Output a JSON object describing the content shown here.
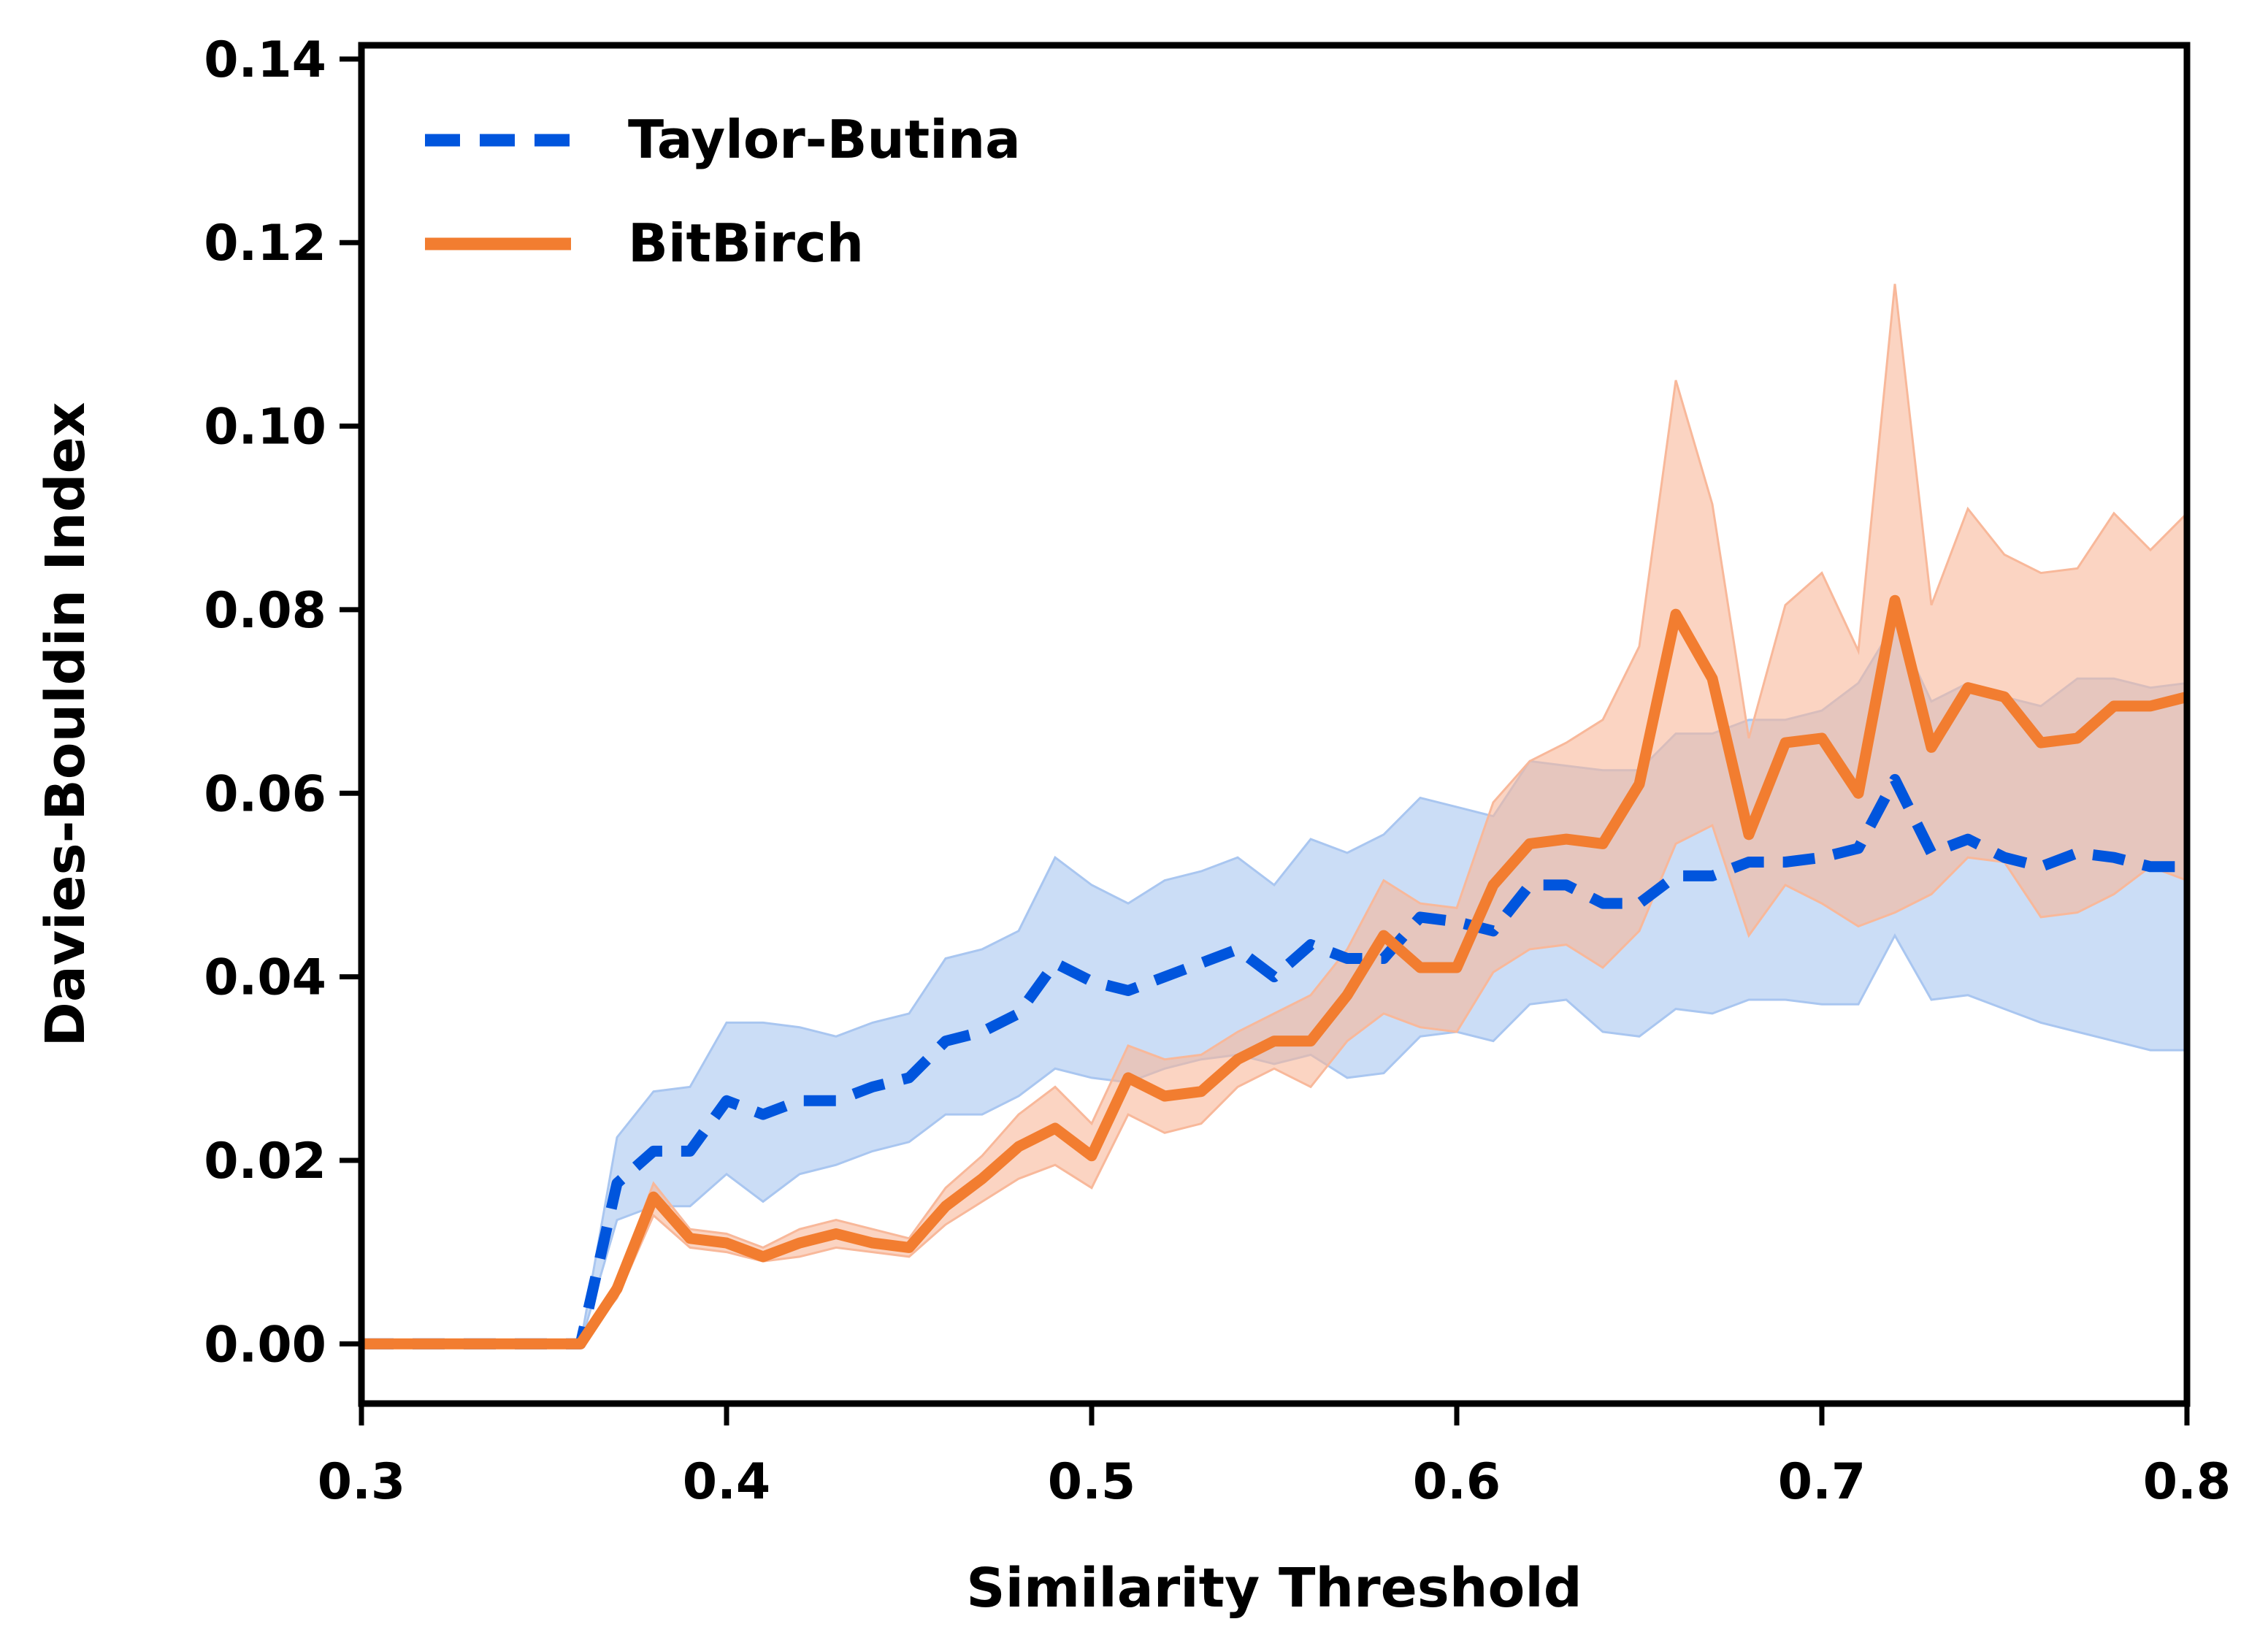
{
  "chart_data": {
    "type": "line",
    "title": "",
    "xlabel": "Similarity Threshold",
    "ylabel": "Davies-Bouldin Index",
    "xlim": [
      0.3,
      0.8
    ],
    "ylim": [
      -0.0065,
      0.1415
    ],
    "x_ticks": [
      0.3,
      0.4,
      0.5,
      0.6,
      0.7,
      0.8
    ],
    "x_tick_labels": [
      "0.3",
      "0.4",
      "0.5",
      "0.6",
      "0.7",
      "0.8"
    ],
    "y_ticks": [
      0.0,
      0.02,
      0.04,
      0.06,
      0.08,
      0.1,
      0.12,
      0.14
    ],
    "y_tick_labels": [
      "0.00",
      "0.02",
      "0.04",
      "0.06",
      "0.08",
      "0.10",
      "0.12",
      "0.14"
    ],
    "grid": false,
    "legend_position": "top-left",
    "x": [
      0.3,
      0.31,
      0.32,
      0.33,
      0.34,
      0.35,
      0.36,
      0.37,
      0.38,
      0.39,
      0.4,
      0.41,
      0.42,
      0.43,
      0.44,
      0.45,
      0.46,
      0.47,
      0.48,
      0.49,
      0.5,
      0.51,
      0.52,
      0.53,
      0.54,
      0.55,
      0.56,
      0.57,
      0.58,
      0.59,
      0.6,
      0.61,
      0.62,
      0.63,
      0.64,
      0.65,
      0.66,
      0.67,
      0.68,
      0.69,
      0.7,
      0.71,
      0.72,
      0.73,
      0.74,
      0.75,
      0.76,
      0.77,
      0.78,
      0.79,
      0.8
    ],
    "series": [
      {
        "name": "Taylor-Butina",
        "color": "#0055dd",
        "band_color": "#a9c6f0",
        "style": "dashed",
        "values": [
          0,
          0,
          0,
          0,
          0,
          0,
          0,
          0.0175,
          0.021,
          0.021,
          0.0265,
          0.025,
          0.0265,
          0.0265,
          0.028,
          0.029,
          0.033,
          0.034,
          0.036,
          0.0415,
          0.0395,
          0.0385,
          0.04,
          0.0415,
          0.043,
          0.04,
          0.0435,
          0.042,
          0.042,
          0.0465,
          0.046,
          0.045,
          0.05,
          0.05,
          0.048,
          0.048,
          0.051,
          0.051,
          0.0525,
          0.0525,
          0.053,
          0.054,
          0.0615,
          0.0535,
          0.055,
          0.053,
          0.052,
          0.0535,
          0.053,
          0.052,
          0.052
        ],
        "lower": [
          0,
          0,
          0,
          0,
          0,
          0,
          0,
          0.0135,
          0.015,
          0.015,
          0.0185,
          0.0155,
          0.0185,
          0.0195,
          0.021,
          0.022,
          0.025,
          0.025,
          0.027,
          0.03,
          0.029,
          0.0285,
          0.03,
          0.031,
          0.0315,
          0.0305,
          0.0315,
          0.029,
          0.0295,
          0.0335,
          0.034,
          0.033,
          0.037,
          0.0375,
          0.034,
          0.0335,
          0.0365,
          0.036,
          0.0375,
          0.0375,
          0.037,
          0.037,
          0.0445,
          0.0375,
          0.038,
          0.0365,
          0.035,
          0.034,
          0.033,
          0.032,
          0.032
        ],
        "upper": [
          0,
          0,
          0,
          0,
          0,
          0,
          0,
          0.0225,
          0.0275,
          0.028,
          0.035,
          0.035,
          0.0345,
          0.0335,
          0.035,
          0.036,
          0.042,
          0.043,
          0.045,
          0.053,
          0.05,
          0.048,
          0.0505,
          0.0515,
          0.053,
          0.05,
          0.055,
          0.0535,
          0.0555,
          0.0595,
          0.0585,
          0.0575,
          0.0635,
          0.063,
          0.0625,
          0.0625,
          0.0665,
          0.0665,
          0.068,
          0.068,
          0.069,
          0.072,
          0.0785,
          0.07,
          0.072,
          0.0705,
          0.0695,
          0.0725,
          0.0725,
          0.0715,
          0.072
        ]
      },
      {
        "name": "BitBirch",
        "color": "#f27d30",
        "band_color": "#f8b89a",
        "style": "solid",
        "values": [
          0,
          0,
          0,
          0,
          0,
          0,
          0,
          0.006,
          0.016,
          0.0115,
          0.011,
          0.0095,
          0.011,
          0.012,
          0.011,
          0.0105,
          0.015,
          0.018,
          0.0215,
          0.0235,
          0.0205,
          0.029,
          0.027,
          0.0275,
          0.031,
          0.033,
          0.033,
          0.038,
          0.0445,
          0.041,
          0.041,
          0.05,
          0.0545,
          0.055,
          0.0545,
          0.061,
          0.0795,
          0.0725,
          0.0555,
          0.0655,
          0.066,
          0.06,
          0.081,
          0.065,
          0.0715,
          0.0705,
          0.0655,
          0.066,
          0.0695,
          0.0695,
          0.0705
        ],
        "lower": [
          0,
          0,
          0,
          0,
          0,
          0,
          0,
          0.005,
          0.014,
          0.0105,
          0.01,
          0.009,
          0.0095,
          0.0105,
          0.01,
          0.0095,
          0.013,
          0.0155,
          0.018,
          0.0195,
          0.017,
          0.025,
          0.023,
          0.024,
          0.028,
          0.03,
          0.028,
          0.033,
          0.036,
          0.0345,
          0.034,
          0.0405,
          0.043,
          0.0435,
          0.041,
          0.045,
          0.0545,
          0.0565,
          0.0445,
          0.05,
          0.048,
          0.0455,
          0.047,
          0.049,
          0.053,
          0.0525,
          0.0465,
          0.047,
          0.049,
          0.052,
          0.0505
        ],
        "upper": [
          0,
          0,
          0,
          0,
          0,
          0,
          0,
          0.007,
          0.0175,
          0.0125,
          0.012,
          0.0105,
          0.0125,
          0.0135,
          0.0125,
          0.0115,
          0.017,
          0.0205,
          0.025,
          0.028,
          0.024,
          0.0325,
          0.031,
          0.0315,
          0.034,
          0.036,
          0.038,
          0.043,
          0.0505,
          0.048,
          0.0475,
          0.059,
          0.0635,
          0.0655,
          0.068,
          0.076,
          0.105,
          0.0915,
          0.066,
          0.0805,
          0.084,
          0.0755,
          0.1155,
          0.0805,
          0.091,
          0.086,
          0.084,
          0.0845,
          0.0905,
          0.0865,
          0.0905
        ]
      }
    ]
  }
}
